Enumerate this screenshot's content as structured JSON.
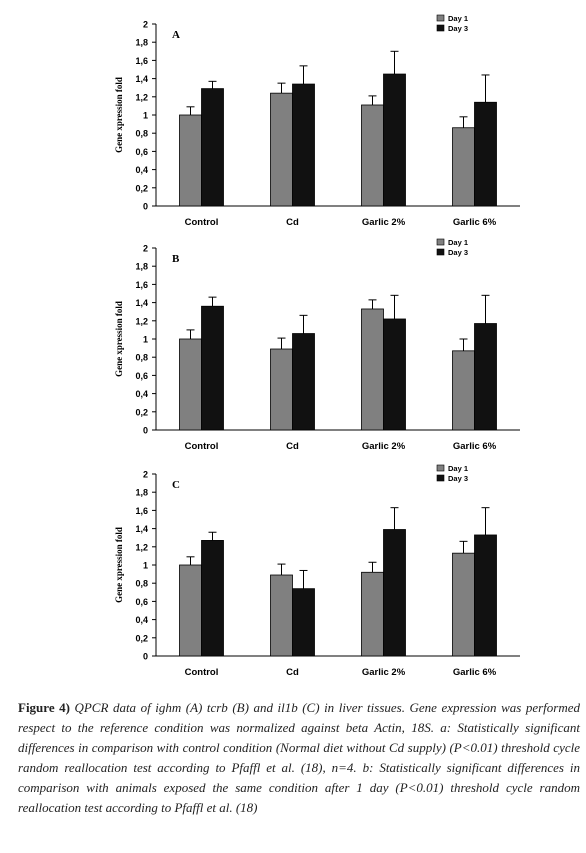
{
  "chart_data": [
    {
      "type": "bar",
      "panel": "A",
      "ylabel": "Gene xpression fold",
      "categories": [
        "Control",
        "Cd",
        "Garlic 2%",
        "Garlic 6%"
      ],
      "series": [
        {
          "name": "Day 1",
          "color": "#808080",
          "values": [
            1.0,
            1.24,
            1.11,
            0.86
          ],
          "errors": [
            0.09,
            0.11,
            0.1,
            0.12
          ]
        },
        {
          "name": "Day 3",
          "color": "#111111",
          "values": [
            1.29,
            1.34,
            1.45,
            1.14
          ],
          "errors": [
            0.08,
            0.2,
            0.25,
            0.3
          ]
        }
      ],
      "ylim": [
        0,
        2
      ],
      "yticks": [
        "0",
        "0,2",
        "0,4",
        "0,6",
        "0,8",
        "1",
        "1,2",
        "1,4",
        "1,6",
        "1,8",
        "2"
      ],
      "legend": "top-right"
    },
    {
      "type": "bar",
      "panel": "B",
      "ylabel": "Gene xpression fold",
      "categories": [
        "Control",
        "Cd",
        "Garlic 2%",
        "Garlic 6%"
      ],
      "series": [
        {
          "name": "Day 1",
          "color": "#808080",
          "values": [
            1.0,
            0.89,
            1.33,
            0.87
          ],
          "errors": [
            0.1,
            0.12,
            0.1,
            0.13
          ]
        },
        {
          "name": "Day 3",
          "color": "#111111",
          "values": [
            1.36,
            1.06,
            1.22,
            1.17
          ],
          "errors": [
            0.1,
            0.2,
            0.26,
            0.31
          ]
        }
      ],
      "ylim": [
        0,
        2
      ],
      "yticks": [
        "0",
        "0,2",
        "0,4",
        "0,6",
        "0,8",
        "1",
        "1,2",
        "1,4",
        "1,6",
        "1,8",
        "2"
      ],
      "legend": "top-right"
    },
    {
      "type": "bar",
      "panel": "C",
      "ylabel": "Gene xpression fold",
      "categories": [
        "Control",
        "Cd",
        "Garlic 2%",
        "Garlic 6%"
      ],
      "series": [
        {
          "name": "Day 1",
          "color": "#808080",
          "values": [
            1.0,
            0.89,
            0.92,
            1.13
          ],
          "errors": [
            0.09,
            0.12,
            0.11,
            0.13
          ]
        },
        {
          "name": "Day 3",
          "color": "#111111",
          "values": [
            1.27,
            0.74,
            1.39,
            1.33
          ],
          "errors": [
            0.09,
            0.2,
            0.24,
            0.3
          ]
        }
      ],
      "ylim": [
        0,
        2
      ],
      "yticks": [
        "0",
        "0,2",
        "0,4",
        "0,6",
        "0,8",
        "1",
        "1,2",
        "1,4",
        "1,6",
        "1,8",
        "2"
      ],
      "legend": "top-right"
    }
  ],
  "caption": {
    "label": "Figure 4)",
    "text": " QPCR data of ighm (A) tcrb (B) and il1b (C) in liver tissues. Gene expression was performed respect to the reference condition was normalized against beta Actin, 18S. a: Statistically significant differences in comparison with control condition (Normal diet without Cd supply) (P<0.01) threshold cycle random reallocation test according to Pfaffl et al. (18), n=4. b: Statistically significant differences in comparison with animals exposed the same condition after 1 day (P<0.01) threshold cycle random reallocation test according to Pfaffl et al. (18)"
  }
}
